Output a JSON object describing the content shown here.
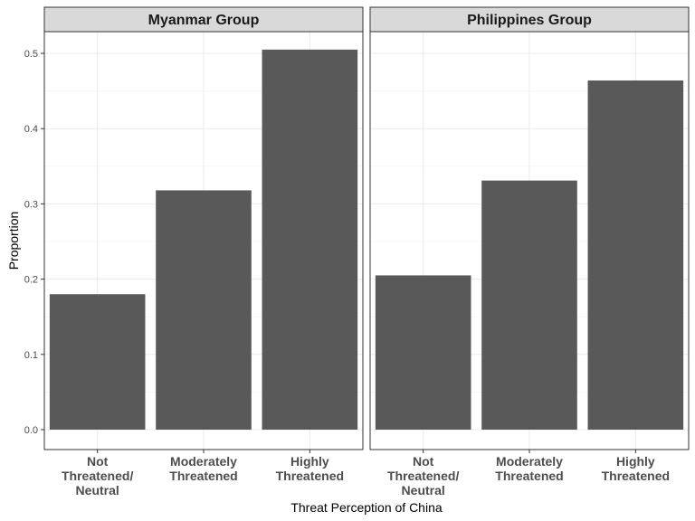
{
  "chart_data": {
    "type": "bar",
    "xlabel": "Threat Perception of China",
    "ylabel": "Proportion",
    "categories": [
      "Not Threatened/ Neutral",
      "Moderately Threatened",
      "Highly Threatened"
    ],
    "category_lines": [
      [
        "Not",
        "Threatened/",
        "Neutral"
      ],
      [
        "Moderately",
        "Threatened"
      ],
      [
        "Highly",
        "Threatened"
      ]
    ],
    "ylim": [
      0,
      0.53
    ],
    "yticks": [
      "0.0",
      "0.1",
      "0.2",
      "0.3",
      "0.4",
      "0.5"
    ],
    "grid": true,
    "bar_color": "#595959",
    "panels": [
      {
        "title": "Myanmar Group",
        "values": [
          0.18,
          0.318,
          0.505
        ]
      },
      {
        "title": "Philippines Group",
        "values": [
          0.205,
          0.331,
          0.464
        ]
      }
    ]
  }
}
